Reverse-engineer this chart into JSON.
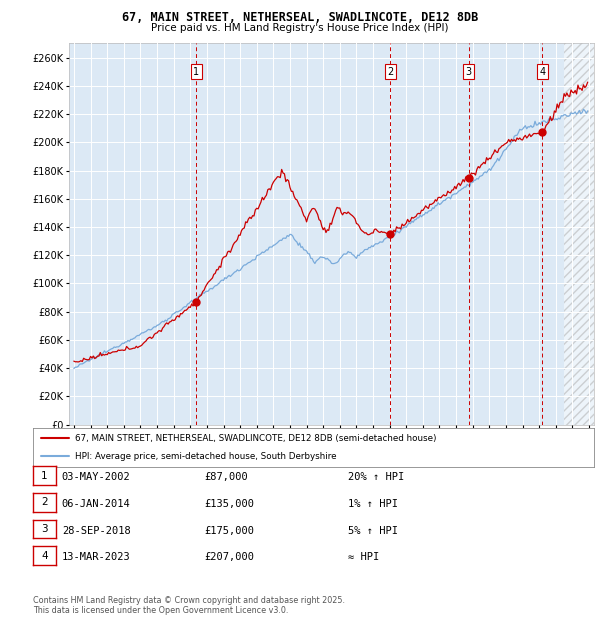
{
  "title_line1": "67, MAIN STREET, NETHERSEAL, SWADLINCOTE, DE12 8DB",
  "title_line2": "Price paid vs. HM Land Registry's House Price Index (HPI)",
  "bg_color": "#dce9f5",
  "legend_line1": "67, MAIN STREET, NETHERSEAL, SWADLINCOTE, DE12 8DB (semi-detached house)",
  "legend_line2": "HPI: Average price, semi-detached house, South Derbyshire",
  "red_color": "#cc0000",
  "blue_color": "#7aabdb",
  "transactions": [
    {
      "num": 1,
      "date": "03-MAY-2002",
      "price": 87000,
      "rel": "20% ↑ HPI",
      "year": 2002.35
    },
    {
      "num": 2,
      "date": "06-JAN-2014",
      "price": 135000,
      "rel": "1% ↑ HPI",
      "year": 2014.03
    },
    {
      "num": 3,
      "date": "28-SEP-2018",
      "price": 175000,
      "rel": "5% ↑ HPI",
      "year": 2018.75
    },
    {
      "num": 4,
      "date": "13-MAR-2023",
      "price": 207000,
      "rel": "≈ HPI",
      "year": 2023.2
    }
  ],
  "footer": "Contains HM Land Registry data © Crown copyright and database right 2025.\nThis data is licensed under the Open Government Licence v3.0.",
  "ylim": [
    0,
    270000
  ],
  "yticks": [
    0,
    20000,
    40000,
    60000,
    80000,
    100000,
    120000,
    140000,
    160000,
    180000,
    200000,
    220000,
    240000,
    260000
  ],
  "xlim_start": 1994.7,
  "xlim_end": 2026.3,
  "hatch_start": 2024.5
}
